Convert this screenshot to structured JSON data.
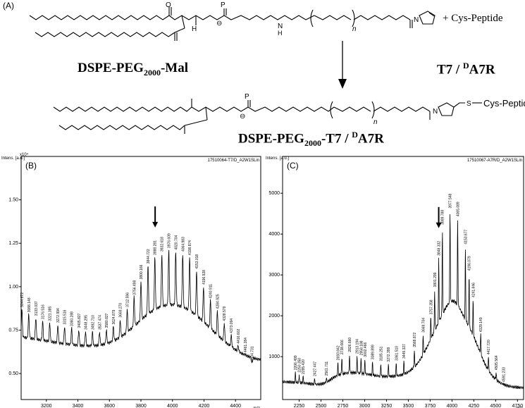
{
  "figure": {
    "panel_a": {
      "letter": "(A)",
      "reactant_name": "DSPE-PEG",
      "reactant_sub": "2000",
      "reactant_suffix": "-Mal",
      "reagent": "+ Cys-Peptide",
      "peptide_pre": "T7 / ",
      "peptide_sup": "D",
      "peptide_post": "A7R",
      "product_name": "DSPE-PEG",
      "product_sub": "2000",
      "product_mid": "-T7 / ",
      "product_sup": "D",
      "product_post": "A7R",
      "struct_labels": {
        "o": "O",
        "p": "P",
        "h": "H",
        "n": "N",
        "nh": "N",
        "hh": "H",
        "minus": "⊖",
        "sub_n": "n",
        "s": "S",
        "cys_peptide": "Cys-Peptide"
      }
    }
  },
  "chart_data": [
    {
      "type": "line",
      "panel": "(B)",
      "header": "17510064-T7/D_A2W1SLin",
      "ylabel": "Intens. [a.u.]",
      "y_multiplier": "x10⁴",
      "xlabel": "m/z",
      "xlim": [
        3040,
        4560
      ],
      "ylim": [
        0.35,
        1.75
      ],
      "y_ticks": [
        "0.50",
        "0.75",
        "1.00",
        "1.25",
        "1.50"
      ],
      "x_ticks": [
        "3200",
        "3400",
        "3600",
        "3800",
        "4000",
        "4200",
        "4400"
      ],
      "arrow_at": 3890,
      "peaks": [
        {
          "x": 3044.672,
          "y": 0.87,
          "label": "3044.672"
        },
        {
          "x": 3088.148,
          "y": 0.84,
          "label": "3088.148"
        },
        {
          "x": 3133.037,
          "y": 0.82,
          "label": "3133.037"
        },
        {
          "x": 3176.516,
          "y": 0.8,
          "label": "3176.516"
        },
        {
          "x": 3221.385,
          "y": 0.79,
          "label": "3221.385"
        },
        {
          "x": 3272.994,
          "y": 0.78,
          "label": "3272.994"
        },
        {
          "x": 3315.516,
          "y": 0.77,
          "label": "3315.516"
        },
        {
          "x": 3360.288,
          "y": 0.76,
          "label": "3360.288"
        },
        {
          "x": 3405.827,
          "y": 0.75,
          "label": "3405.827"
        },
        {
          "x": 3448.295,
          "y": 0.74,
          "label": "3448.295"
        },
        {
          "x": 3492.71,
          "y": 0.74,
          "label": "3492.710"
        },
        {
          "x": 3537.474,
          "y": 0.74,
          "label": "3537.474"
        },
        {
          "x": 3580.827,
          "y": 0.75,
          "label": "3580.827"
        },
        {
          "x": 3624.879,
          "y": 0.77,
          "label": "3624.879"
        },
        {
          "x": 3668.27,
          "y": 0.81,
          "label": "3668.270"
        },
        {
          "x": 3712.596,
          "y": 0.87,
          "label": "3712.596"
        },
        {
          "x": 3756.498,
          "y": 0.94,
          "label": "3756.498"
        },
        {
          "x": 3800.166,
          "y": 1.03,
          "label": "3800.166"
        },
        {
          "x": 3844.722,
          "y": 1.12,
          "label": "3844.722"
        },
        {
          "x": 3888.281,
          "y": 1.17,
          "label": "3888.281"
        },
        {
          "x": 3932.618,
          "y": 1.19,
          "label": "3932.618"
        },
        {
          "x": 3976.609,
          "y": 1.21,
          "label": "3976.609"
        },
        {
          "x": 4020.704,
          "y": 1.2,
          "label": "4020.704"
        },
        {
          "x": 4064.983,
          "y": 1.19,
          "label": "4064.983"
        },
        {
          "x": 4108.874,
          "y": 1.17,
          "label": "4108.874"
        },
        {
          "x": 4153.018,
          "y": 1.09,
          "label": "4153.018"
        },
        {
          "x": 4196.928,
          "y": 1.0,
          "label": "4196.928"
        },
        {
          "x": 4240.911,
          "y": 0.92,
          "label": "4240.911"
        },
        {
          "x": 4284.925,
          "y": 0.86,
          "label": "4284.925"
        },
        {
          "x": 4328.579,
          "y": 0.79,
          "label": "4328.579"
        },
        {
          "x": 4373.094,
          "y": 0.72,
          "label": "4373.094"
        },
        {
          "x": 4416.602,
          "y": 0.66,
          "label": "4416.602"
        },
        {
          "x": 4461.284,
          "y": 0.61,
          "label": "4461.284"
        },
        {
          "x": 4504.731,
          "y": 0.56,
          "label": "4504.731"
        }
      ]
    },
    {
      "type": "line",
      "panel": "(C)",
      "header": "17510067-A7R/D_A2W1SLin",
      "ylabel": "Intens. [a.u.]",
      "xlabel": "m/z",
      "xlim": [
        2060,
        4820
      ],
      "ylim": [
        -50,
        5900
      ],
      "y_ticks": [
        "1000",
        "2000",
        "3000",
        "4000",
        "5000"
      ],
      "x_ticks": [
        "2250",
        "2500",
        "2750",
        "3000",
        "3250",
        "3500",
        "3750",
        "4000",
        "4250",
        "4500",
        "4750"
      ],
      "arrow_at": 3848,
      "peaks": [
        {
          "x": 2206.499,
          "y": 620,
          "label": "2206.499"
        },
        {
          "x": 2250.35,
          "y": 560,
          "label": "2250.350"
        },
        {
          "x": 2295.42,
          "y": 520,
          "label": "2295.420"
        },
        {
          "x": 2427.447,
          "y": 470,
          "label": "2427.447"
        },
        {
          "x": 2561.711,
          "y": 480,
          "label": "2561.711"
        },
        {
          "x": 2693.842,
          "y": 860,
          "label": "2693.842"
        },
        {
          "x": 2738.666,
          "y": 1000,
          "label": "2738.666"
        },
        {
          "x": 2826.66,
          "y": 1060,
          "label": "2826.660"
        },
        {
          "x": 2913.194,
          "y": 1020,
          "label": "2913.194"
        },
        {
          "x": 2958.188,
          "y": 980,
          "label": "2958.188"
        },
        {
          "x": 3002.466,
          "y": 940,
          "label": "3002.466"
        },
        {
          "x": 3089.899,
          "y": 880,
          "label": "3089.899"
        },
        {
          "x": 3185.251,
          "y": 840,
          "label": "3185.251"
        },
        {
          "x": 3272.399,
          "y": 820,
          "label": "3272.399"
        },
        {
          "x": 3361.51,
          "y": 850,
          "label": "3361.510"
        },
        {
          "x": 3449.327,
          "y": 900,
          "label": "3449.327"
        },
        {
          "x": 3568.872,
          "y": 1180,
          "label": "3568.872"
        },
        {
          "x": 3669.704,
          "y": 1540,
          "label": "3669.704"
        },
        {
          "x": 3757.358,
          "y": 1980,
          "label": "3757.358"
        },
        {
          "x": 3801.299,
          "y": 2650,
          "label": "3801.299"
        },
        {
          "x": 3848.332,
          "y": 3420,
          "label": "3848.332"
        },
        {
          "x": 3889.788,
          "y": 4180,
          "label": "3889.788"
        },
        {
          "x": 3977.548,
          "y": 4580,
          "label": "3977.548"
        },
        {
          "x": 4065.089,
          "y": 4380,
          "label": "4065.089"
        },
        {
          "x": 4153.677,
          "y": 3700,
          "label": "4153.677"
        },
        {
          "x": 4196.079,
          "y": 3050,
          "label": "4196.079"
        },
        {
          "x": 4241.846,
          "y": 2400,
          "label": "4241.846"
        },
        {
          "x": 4329.149,
          "y": 1550,
          "label": "4329.149"
        },
        {
          "x": 4417.72,
          "y": 1000,
          "label": "4417.720"
        },
        {
          "x": 4505.564,
          "y": 620,
          "label": "4505.564"
        },
        {
          "x": 4591.233,
          "y": 330,
          "label": "4591.233"
        }
      ]
    }
  ]
}
